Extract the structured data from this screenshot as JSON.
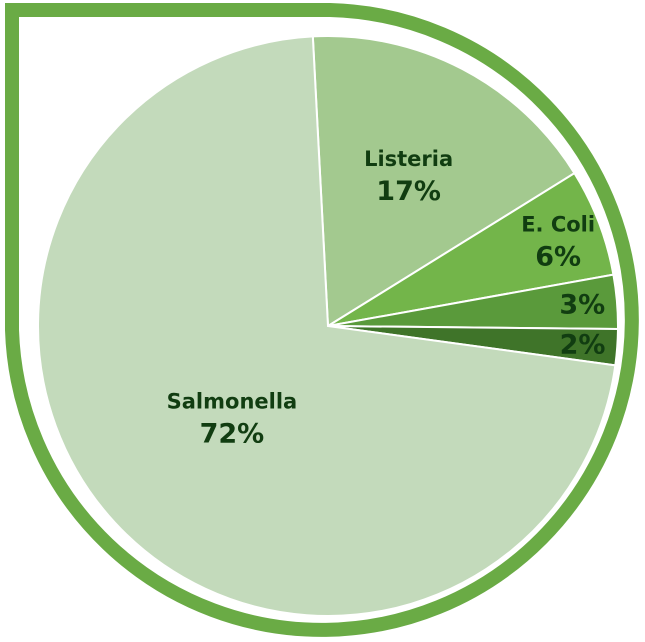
{
  "chart_data": {
    "type": "pie",
    "title": "",
    "slices": [
      {
        "label": "Listeria",
        "value": 17,
        "value_text": "17%",
        "color": "#a3c98f"
      },
      {
        "label": "E. Coli",
        "value": 6,
        "value_text": "6%",
        "color": "#73b54a"
      },
      {
        "label": "",
        "value": 3,
        "value_text": "3%",
        "color": "#5a9a3b"
      },
      {
        "label": "",
        "value": 2,
        "value_text": "2%",
        "color": "#3f7429"
      },
      {
        "label": "Salmonella",
        "value": 72,
        "value_text": "72%",
        "color": "#c3dabb"
      }
    ],
    "frame_color": "#6aab45",
    "text_color": "#113d11",
    "legend": "none"
  }
}
